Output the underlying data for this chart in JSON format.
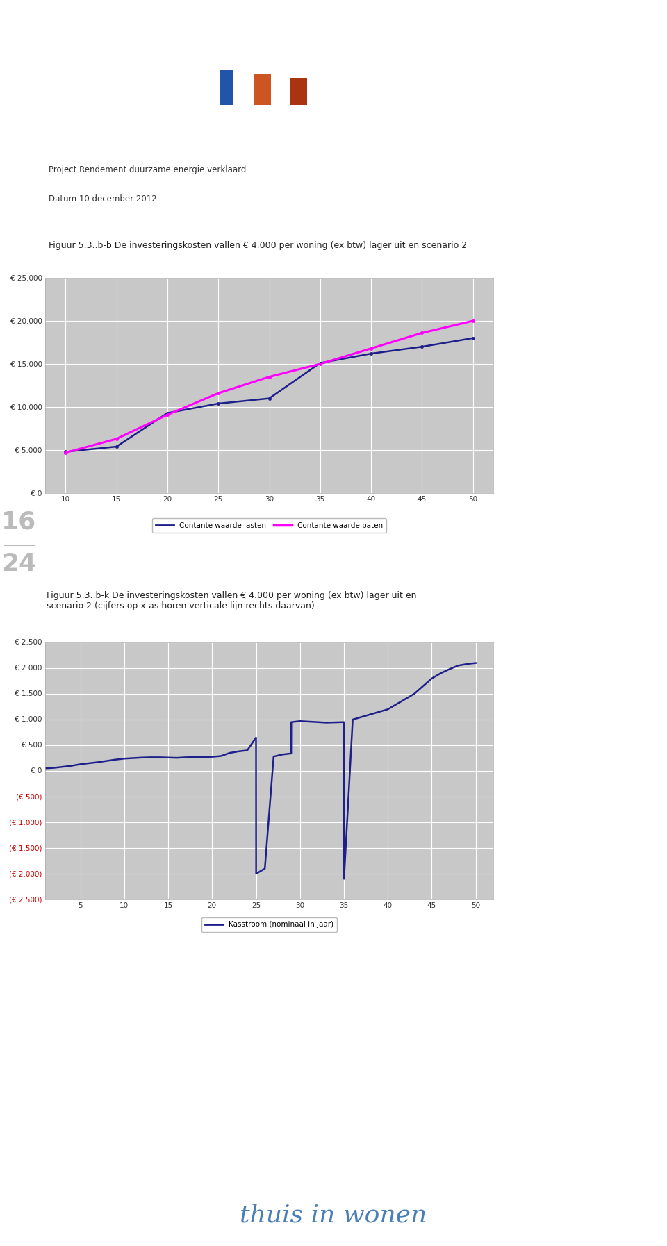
{
  "page_bg": "#ffffff",
  "header_text1": "Project Rendement duurzame energie verklaard",
  "header_text2": "Datum 10 december 2012",
  "fig1_title": "Figuur 5.3..b-b De investeringskosten vallen € 4.000 per woning (ex btw) lager uit en scenario 2",
  "fig2_title": "Figuur 5.3..b-k De investeringskosten vallen € 4.000 per woning (ex btw) lager uit en\nscenario 2 (cijfers op x-as horen verticale lijn rechts daarvan)",
  "footer_text": "thuis in wonen",
  "chart1_x": [
    10,
    15,
    20,
    25,
    30,
    35,
    40,
    45,
    50
  ],
  "chart1_lasten": [
    4800,
    5400,
    9300,
    10400,
    11000,
    15100,
    16200,
    17000,
    18000
  ],
  "chart1_baten": [
    4700,
    6300,
    9100,
    11600,
    13500,
    15000,
    16800,
    18600,
    20000
  ],
  "chart1_ylim": [
    0,
    25000
  ],
  "chart1_yticks": [
    0,
    5000,
    10000,
    15000,
    20000,
    25000
  ],
  "chart1_ytick_labels": [
    "€ 0",
    "€ 5.000",
    "€ 10.000",
    "€ 15.000",
    "€ 20.000",
    "€ 25.000"
  ],
  "chart1_xticks": [
    10,
    15,
    20,
    25,
    30,
    35,
    40,
    45,
    50
  ],
  "chart1_color_lasten": "#1F1F8B",
  "chart1_color_baten": "#FF00FF",
  "chart1_legend_lasten": "Contante waarde lasten",
  "chart1_legend_baten": "Contante waarde baten",
  "chart2_x": [
    1,
    2,
    3,
    4,
    5,
    6,
    7,
    8,
    9,
    10,
    11,
    12,
    13,
    14,
    15,
    16,
    17,
    18,
    19,
    20,
    21,
    22,
    23,
    24,
    25,
    25.01,
    26,
    27,
    28,
    29,
    29.01,
    30,
    31,
    32,
    33,
    34,
    35,
    35.01,
    36,
    37,
    38,
    39,
    40,
    41,
    42,
    43,
    44,
    45,
    46,
    47,
    48,
    49,
    50
  ],
  "chart2_kasstroom": [
    50,
    60,
    80,
    100,
    130,
    150,
    170,
    195,
    220,
    240,
    250,
    260,
    265,
    265,
    260,
    255,
    265,
    268,
    272,
    275,
    290,
    350,
    380,
    400,
    650,
    -2000,
    -1900,
    280,
    320,
    340,
    950,
    970,
    960,
    950,
    940,
    945,
    950,
    -2100,
    1000,
    1050,
    1100,
    1150,
    1200,
    1300,
    1400,
    1500,
    1650,
    1800,
    1900,
    1980,
    2050,
    2080,
    2100
  ],
  "chart2_ylim": [
    -2500,
    2500
  ],
  "chart2_yticks": [
    -2500,
    -2000,
    -1500,
    -1000,
    -500,
    0,
    500,
    1000,
    1500,
    2000,
    2500
  ],
  "chart2_ytick_labels": [
    "(€ 2.500)",
    "(€ 2.000)",
    "(€ 1.500)",
    "(€ 1.000)",
    "(€ 500)",
    "€ 0",
    "€ 500",
    "€ 1.000",
    "€ 1.500",
    "€ 2.000",
    "€ 2.500"
  ],
  "chart2_xticks": [
    5,
    10,
    15,
    20,
    25,
    30,
    35,
    40,
    45,
    50
  ],
  "chart2_color": "#1F1F8B",
  "chart2_legend": "Kasstroom (nominaal in jaar)"
}
